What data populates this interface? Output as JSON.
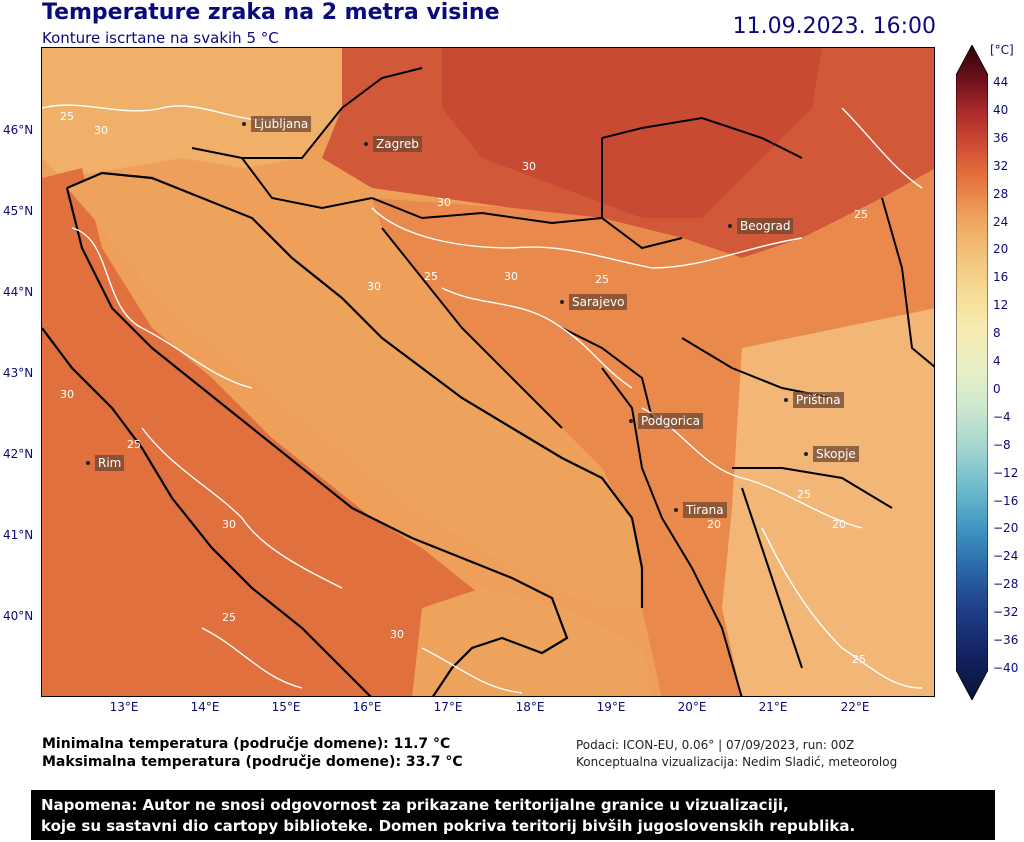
{
  "title": "Temperature zraka na 2 metra visine",
  "subtitle": "Konture iscrtane na svakih 5 °C",
  "datetime": "11.09.2023. 16:00",
  "colorbar": {
    "unit": "[°C]",
    "ticks": [
      "44",
      "40",
      "36",
      "32",
      "28",
      "24",
      "20",
      "16",
      "12",
      "8",
      "4",
      "0",
      "−4",
      "−8",
      "−12",
      "−16",
      "−20",
      "−24",
      "−28",
      "−32",
      "−36",
      "−40"
    ],
    "colors": [
      "#2b0508",
      "#6b0f1a",
      "#a82a2a",
      "#cf4a33",
      "#e4703d",
      "#eea05a",
      "#f3c27a",
      "#f7dc96",
      "#f6edb5",
      "#e6f0c8",
      "#c9e6cf",
      "#9fd3cf",
      "#6bb9cc",
      "#3f94c1",
      "#2a68a8",
      "#1f3f8a",
      "#142263",
      "#0b1238"
    ]
  },
  "map": {
    "lon_ticks": [
      "13°E",
      "14°E",
      "15°E",
      "16°E",
      "17°E",
      "18°E",
      "19°E",
      "20°E",
      "21°E",
      "22°E"
    ],
    "lat_ticks": [
      "46°N",
      "45°N",
      "44°N",
      "43°N",
      "42°N",
      "41°N",
      "40°N"
    ],
    "contour_labels": [
      "25",
      "30",
      "30",
      "30",
      "25",
      "30",
      "25",
      "30",
      "25",
      "30",
      "20",
      "25",
      "20",
      "25",
      "30",
      "25",
      "30",
      "25"
    ],
    "cities": [
      {
        "name": "Ljubljana"
      },
      {
        "name": "Zagreb"
      },
      {
        "name": "Beograd"
      },
      {
        "name": "Sarajevo"
      },
      {
        "name": "Podgorica"
      },
      {
        "name": "Priština"
      },
      {
        "name": "Skopje"
      },
      {
        "name": "Tirana"
      },
      {
        "name": "Rim"
      }
    ]
  },
  "stats": {
    "min": "Minimalna temperatura (područje domene): 11.7 °C",
    "max": "Maksimalna temperatura (područje domene): 33.7 °C"
  },
  "source": {
    "line1": "Podaci: ICON-EU, 0.06° | 07/09/2023, run: 00Z",
    "line2": "Konceptualna vizualizacija: Nedim Sladić, meteorolog"
  },
  "note": {
    "line1": "Napomena: Autor ne snosi odgovornost za prikazane teritorijalne granice u vizualizaciji,",
    "line2": "koje su sastavni dio cartopy biblioteke. Domen pokriva teritorij bivših jugoslovenskih republika."
  }
}
